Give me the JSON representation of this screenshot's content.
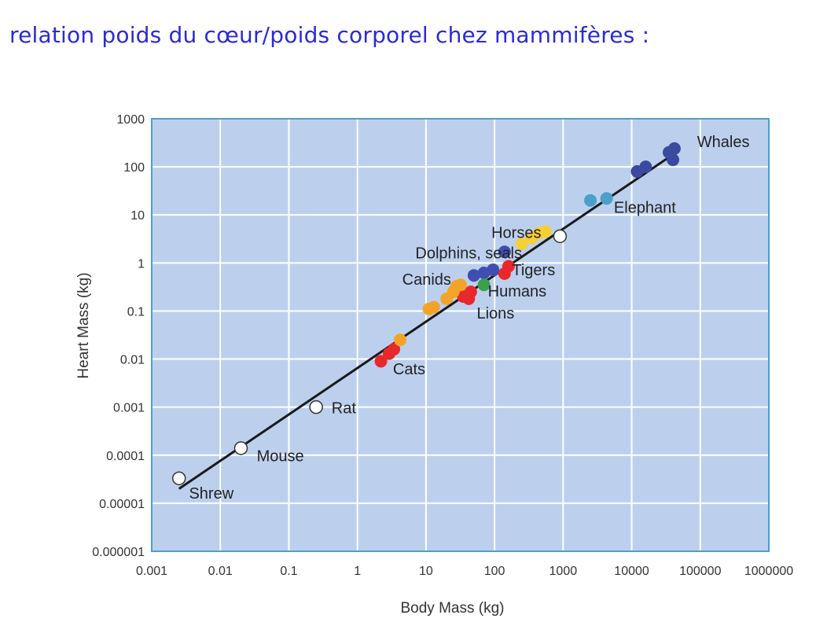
{
  "slide": {
    "title": "relation poids du cœur/poids corporel chez mammifères :"
  },
  "chart_data": {
    "type": "scatter",
    "title": "",
    "xlabel": "Body Mass (kg)",
    "ylabel": "Heart Mass (kg)",
    "xscale": "log",
    "yscale": "log",
    "xlim": [
      0.001,
      1000000
    ],
    "ylim": [
      1e-06,
      1000
    ],
    "x_ticks": [
      "0.001",
      "0.01",
      "0.1",
      "1",
      "10",
      "100",
      "1000",
      "10000",
      "100000",
      "1000000"
    ],
    "y_ticks": [
      "1000",
      "100",
      "10",
      "1",
      "0.1",
      "0.01",
      "0.001",
      "0.0001",
      "0.00001",
      "0.000001"
    ],
    "grid": true,
    "colors": {
      "plot_background": "#bcd0ee",
      "grid": "#ffffff",
      "frame": "#4a9fd0",
      "fit_line": "#1a1a1a",
      "whales": "#3a4aa0",
      "elephant": "#4aa0c8",
      "horses": "#f6cf35",
      "dolphins_seals": "#3f4fb0",
      "tigers": "#e8282a",
      "humans": "#3aa050",
      "lions": "#e8282a",
      "canids": "#f3a428",
      "cats": "#e8282a",
      "small_mammals": "#ffffff"
    },
    "fit_line": {
      "x": [
        0.0025,
        40000
      ],
      "y": [
        2e-05,
        180
      ]
    },
    "series": [
      {
        "group": "whales",
        "x": [
          12000,
          16000,
          35000,
          42000,
          40000
        ],
        "y": [
          80,
          100,
          200,
          240,
          140
        ]
      },
      {
        "group": "elephant",
        "x": [
          2500,
          4300
        ],
        "y": [
          20,
          22
        ]
      },
      {
        "group": "horses",
        "x": [
          250,
          350,
          450,
          550
        ],
        "y": [
          2.5,
          3.3,
          4.2,
          4.5
        ]
      },
      {
        "group": "dolphins_seals",
        "x": [
          50,
          70,
          95,
          140
        ],
        "y": [
          0.55,
          0.62,
          0.72,
          1.7
        ]
      },
      {
        "group": "tigers",
        "x": [
          140,
          160
        ],
        "y": [
          0.6,
          0.85
        ]
      },
      {
        "group": "humans",
        "x": [
          70
        ],
        "y": [
          0.35
        ]
      },
      {
        "group": "lions",
        "x": [
          35,
          42,
          45
        ],
        "y": [
          0.2,
          0.18,
          0.25
        ]
      },
      {
        "group": "canids",
        "x": [
          11,
          13,
          20,
          25,
          28,
          32
        ],
        "y": [
          0.11,
          0.12,
          0.18,
          0.25,
          0.33,
          0.35
        ]
      },
      {
        "group": "cats",
        "x": [
          2.2,
          2.9,
          3.4
        ],
        "y": [
          0.009,
          0.013,
          0.016
        ]
      },
      {
        "group": "canids",
        "x": [
          4.2
        ],
        "y": [
          0.025
        ]
      },
      {
        "group": "small_mammals",
        "x": [
          0.0025,
          0.02,
          0.25,
          900
        ],
        "y": [
          3.3e-05,
          0.00014,
          0.001,
          3.6
        ]
      }
    ],
    "annotations": [
      {
        "text": "Whales",
        "x": 90000,
        "y": 260
      },
      {
        "text": "Elephant",
        "x": 5500,
        "y": 11
      },
      {
        "text": "Horses",
        "x": 90,
        "y": 3.3
      },
      {
        "text": "Dolphins, seals",
        "x": 7,
        "y": 1.25
      },
      {
        "text": "Tigers",
        "x": 180,
        "y": 0.55
      },
      {
        "text": "Humans",
        "x": 80,
        "y": 0.2
      },
      {
        "text": "Lions",
        "x": 55,
        "y": 0.07
      },
      {
        "text": "Canids",
        "x": 4.5,
        "y": 0.35
      },
      {
        "text": "Cats",
        "x": 3.3,
        "y": 0.0048
      },
      {
        "text": "Rat",
        "x": 0.42,
        "y": 0.00075
      },
      {
        "text": "Mouse",
        "x": 0.034,
        "y": 7.5e-05
      },
      {
        "text": "Shrew",
        "x": 0.0035,
        "y": 1.25e-05
      }
    ]
  }
}
